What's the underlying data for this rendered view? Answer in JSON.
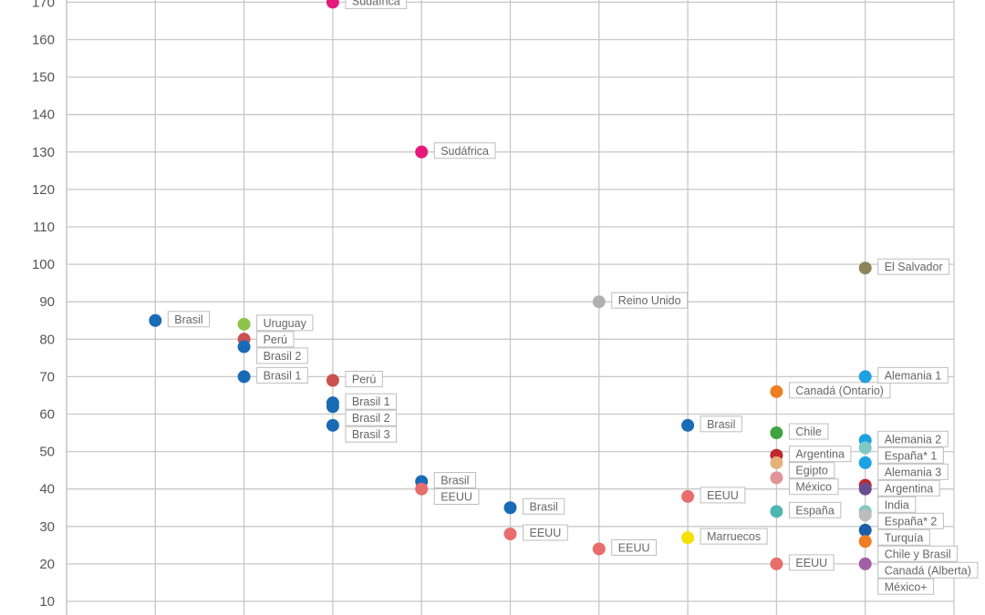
{
  "chart_data": {
    "type": "scatter",
    "title": "",
    "xlabel": "",
    "ylabel": "",
    "ylim": [
      10,
      170
    ],
    "yticks": [
      10,
      20,
      30,
      40,
      50,
      60,
      70,
      80,
      90,
      100,
      110,
      120,
      130,
      140,
      150,
      160,
      170
    ],
    "grid": true,
    "columns": 10,
    "points": [
      {
        "col": 1,
        "y": 85,
        "label": "Brasil",
        "color": "#1a6bb5"
      },
      {
        "col": 2,
        "y": 84,
        "label": "Uruguay",
        "color": "#8fc34a"
      },
      {
        "col": 2,
        "y": 80,
        "label": "Perú",
        "color": "#c9514f"
      },
      {
        "col": 2,
        "y": 78,
        "label": "Brasil 2",
        "color": "#1a6bb5"
      },
      {
        "col": 2,
        "y": 70,
        "label": "Brasil 1",
        "color": "#1a6bb5"
      },
      {
        "col": 3,
        "y": 170,
        "label": "Sudáfrica",
        "color": "#e5197d"
      },
      {
        "col": 3,
        "y": 69,
        "label": "Perú",
        "color": "#c9514f"
      },
      {
        "col": 3,
        "y": 63,
        "label": "Brasil 1",
        "color": "#1a6bb5"
      },
      {
        "col": 3,
        "y": 62,
        "label": "Brasil 2",
        "color": "#1a6bb5"
      },
      {
        "col": 3,
        "y": 57,
        "label": "Brasil 3",
        "color": "#1a6bb5"
      },
      {
        "col": 4,
        "y": 130,
        "label": "Sudáfrica",
        "color": "#e5197d"
      },
      {
        "col": 4,
        "y": 42,
        "label": "Brasil",
        "color": "#1a6bb5"
      },
      {
        "col": 4,
        "y": 40,
        "label": "EEUU",
        "color": "#e86d6d"
      },
      {
        "col": 5,
        "y": 35,
        "label": "Brasil",
        "color": "#1a6bb5"
      },
      {
        "col": 5,
        "y": 28,
        "label": "EEUU",
        "color": "#e86d6d"
      },
      {
        "col": 6,
        "y": 90,
        "label": "Reino Unido",
        "color": "#b0b0b0"
      },
      {
        "col": 6,
        "y": 24,
        "label": "EEUU",
        "color": "#e86d6d"
      },
      {
        "col": 7,
        "y": 57,
        "label": "Brasil",
        "color": "#1a6bb5"
      },
      {
        "col": 7,
        "y": 38,
        "label": "EEUU",
        "color": "#e86d6d"
      },
      {
        "col": 7,
        "y": 27,
        "label": "Marruecos",
        "color": "#f4e100"
      },
      {
        "col": 8,
        "y": 66,
        "label": "Canadá (Ontario)",
        "color": "#ef7d22"
      },
      {
        "col": 8,
        "y": 55,
        "label": "Chile",
        "color": "#3fa33f"
      },
      {
        "col": 8,
        "y": 49,
        "label": "Argentina",
        "color": "#c0282d"
      },
      {
        "col": 8,
        "y": 47,
        "label": "Egipto",
        "color": "#e2b27a"
      },
      {
        "col": 8,
        "y": 43,
        "label": "México",
        "color": "#e09495"
      },
      {
        "col": 8,
        "y": 34,
        "label": "España",
        "color": "#4eb6b2"
      },
      {
        "col": 8,
        "y": 20,
        "label": "EEUU",
        "color": "#e86d6d"
      },
      {
        "col": 9,
        "y": 99,
        "label": "El Salvador",
        "color": "#8d845a"
      },
      {
        "col": 9,
        "y": 70,
        "label": "Alemania 1",
        "color": "#1ea1e0"
      },
      {
        "col": 9,
        "y": 53,
        "label": "Alemania 2",
        "color": "#1ea1e0"
      },
      {
        "col": 9,
        "y": 51,
        "label": "España* 1",
        "color": "#7ec8c6"
      },
      {
        "col": 9,
        "y": 47,
        "label": "Alemania 3",
        "color": "#1ea1e0"
      },
      {
        "col": 9,
        "y": 41,
        "label": "Argentina",
        "color": "#c0282d"
      },
      {
        "col": 9,
        "y": 40,
        "label": "India",
        "color": "#6a4c93"
      },
      {
        "col": 9,
        "y": 34,
        "label": "España* 2",
        "color": "#7ec8c6"
      },
      {
        "col": 9,
        "y": 33,
        "label": "Turquía",
        "color": "#bcbcbc"
      },
      {
        "col": 9,
        "y": 29,
        "label": "Chile y Brasil",
        "color": "#1a5fa8"
      },
      {
        "col": 9,
        "y": 26,
        "label": "Canadá (Alberta)",
        "color": "#ef7d22"
      },
      {
        "col": 9,
        "y": 20,
        "label": "México+",
        "color": "#a25fa8"
      }
    ]
  }
}
